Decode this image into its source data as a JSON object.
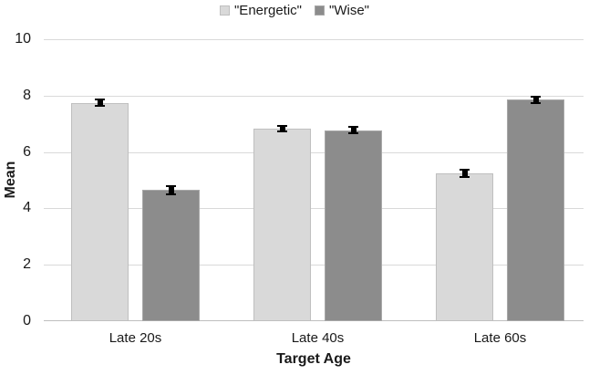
{
  "chart_data": {
    "type": "bar",
    "title": "",
    "xlabel": "Target Age",
    "ylabel": "Mean",
    "categories": [
      "Late 20s",
      "Late 40s",
      "Late 60s"
    ],
    "series": [
      {
        "name": "\"Energetic\"",
        "values": [
          7.75,
          6.82,
          5.25
        ],
        "errors": [
          0.08,
          0.07,
          0.1
        ],
        "color": "#d9d9d9",
        "border": "#bfbfbf"
      },
      {
        "name": "\"Wise\"",
        "values": [
          4.65,
          6.78,
          7.85
        ],
        "errors": [
          0.12,
          0.08,
          0.07
        ],
        "color": "#8c8c8c",
        "border": "#a8a8a8"
      }
    ],
    "ylim": [
      0,
      10
    ],
    "yticks": [
      0,
      2,
      4,
      6,
      8,
      10
    ],
    "grid": "horizontal",
    "legend_position": "top-center",
    "error_bars": true,
    "error_bar_color": "#000000",
    "gridline_color": "#d9d9d9",
    "baseline_color": "#bfbfbf",
    "background": "#ffffff"
  }
}
